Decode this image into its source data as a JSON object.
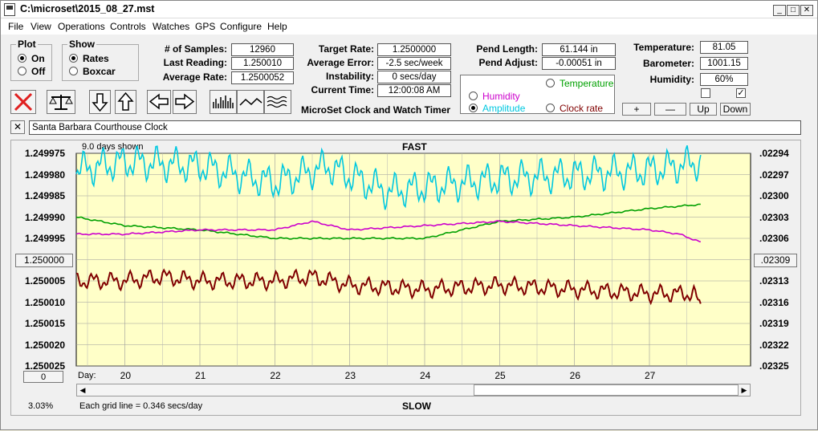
{
  "window": {
    "title": "C:\\microset\\2015_08_27.mst"
  },
  "menu": [
    "File",
    "View",
    "Operations",
    "Controls",
    "Watches",
    "GPS",
    "Configure",
    "Help"
  ],
  "plot_group": {
    "title": "Plot",
    "on": "On",
    "off": "Off",
    "selected": "On"
  },
  "show_group": {
    "title": "Show",
    "rates": "Rates",
    "boxcar": "Boxcar",
    "selected": "Rates"
  },
  "stats": {
    "samples_label": "# of Samples:",
    "samples": "12960",
    "last_reading_label": "Last Reading:",
    "last_reading": "1.250010",
    "average_rate_label": "Average Rate:",
    "average_rate": "1.2500052",
    "target_rate_label": "Target Rate:",
    "target_rate": "1.2500000",
    "average_error_label": "Average Error:",
    "average_error": "-2.5 sec/week",
    "instability_label": "Instability:",
    "instability": "0 secs/day",
    "current_time_label": "Current Time:",
    "current_time": "12:00:08 AM",
    "pend_length_label": "Pend Length:",
    "pend_length": "61.144 in",
    "pend_adjust_label": "Pend Adjust:",
    "pend_adjust": "-0.00051 in",
    "temperature_label": "Temperature:",
    "temperature": "81.05",
    "barometer_label": "Barometer:",
    "barometer": "1001.15",
    "humidity_label": "Humidity:",
    "humidity": "60%"
  },
  "app_caption": "MicroSet Clock and Watch Timer",
  "series_select": {
    "humidity": "Humidity",
    "amplitude": "Amplitude",
    "temperature": "Temperature",
    "clock_rate": "Clock rate",
    "colors": {
      "humidity": "#cc00cc",
      "amplitude": "#00c8e0",
      "temperature": "#00a000",
      "clock_rate": "#800000"
    }
  },
  "adjust_buttons": {
    "plus": "+",
    "minus": "—",
    "up": "Up",
    "down": "Down"
  },
  "checkbox_mark": "✓",
  "description": "Santa Barbara Courthouse Clock",
  "close_mark": "✕",
  "plot": {
    "days_shown": "9.0 days shown",
    "fast": "FAST",
    "slow": "SLOW",
    "left_ticks": [
      "1.249975",
      "1.249980",
      "1.249985",
      "1.249990",
      "1.249995",
      "1.250000",
      "1.250005",
      "1.250010",
      "1.250015",
      "1.250020",
      "1.250025"
    ],
    "right_ticks": [
      ".02294",
      ".02297",
      ".02300",
      ".02303",
      ".02306",
      ".02309",
      ".02313",
      ".02316",
      ".02319",
      ".02322",
      ".02325"
    ],
    "left_center_button": "1.250000",
    "right_center_button": ".02309",
    "zero_button": "0",
    "day_label": "Day:",
    "days": [
      "20",
      "21",
      "22",
      "23",
      "24",
      "25",
      "26",
      "27"
    ],
    "percent": "3.03%",
    "grid_note": "Each grid line = 0.346 secs/day",
    "bg_color": "#ffffc8"
  },
  "chart_data": {
    "type": "line",
    "x_range_days": [
      19.35,
      28.35
    ],
    "ylim": [
      1.249975,
      1.250025
    ],
    "series": [
      {
        "name": "Amplitude",
        "x": [
          19.35,
          20.0,
          21.0,
          22.0,
          22.7,
          23.5,
          24.0,
          25.0,
          26.0,
          27.0,
          27.7
        ],
        "values": [
          1.249979,
          1.249977,
          1.249978,
          1.249982,
          1.249978,
          1.249984,
          1.249983,
          1.249981,
          1.24998,
          1.249979,
          1.249977
        ]
      },
      {
        "name": "Temperature",
        "x": [
          19.35,
          20.0,
          21.0,
          22.0,
          23.0,
          24.0,
          24.5,
          25.0,
          26.0,
          27.0,
          27.7
        ],
        "values": [
          1.24999,
          1.249992,
          1.249993,
          1.249995,
          1.249995,
          1.249995,
          1.249993,
          1.249991,
          1.24999,
          1.249988,
          1.249987
        ]
      },
      {
        "name": "Humidity",
        "x": [
          19.35,
          20.0,
          21.0,
          22.0,
          22.5,
          23.0,
          24.0,
          25.0,
          26.0,
          27.0,
          27.4,
          27.7
        ],
        "values": [
          1.249994,
          1.249994,
          1.249993,
          1.249993,
          1.249991,
          1.249993,
          1.249992,
          1.249991,
          1.249992,
          1.249993,
          1.249994,
          1.249996
        ]
      },
      {
        "name": "Clock rate",
        "x": [
          19.35,
          20.0,
          20.5,
          21.0,
          22.0,
          22.5,
          23.0,
          24.0,
          25.0,
          26.0,
          27.0,
          27.6,
          27.7
        ],
        "values": [
          1.250005,
          1.250005,
          1.250004,
          1.250005,
          1.250005,
          1.250004,
          1.250006,
          1.250007,
          1.250006,
          1.250007,
          1.250008,
          1.250008,
          1.250012
        ]
      }
    ]
  }
}
